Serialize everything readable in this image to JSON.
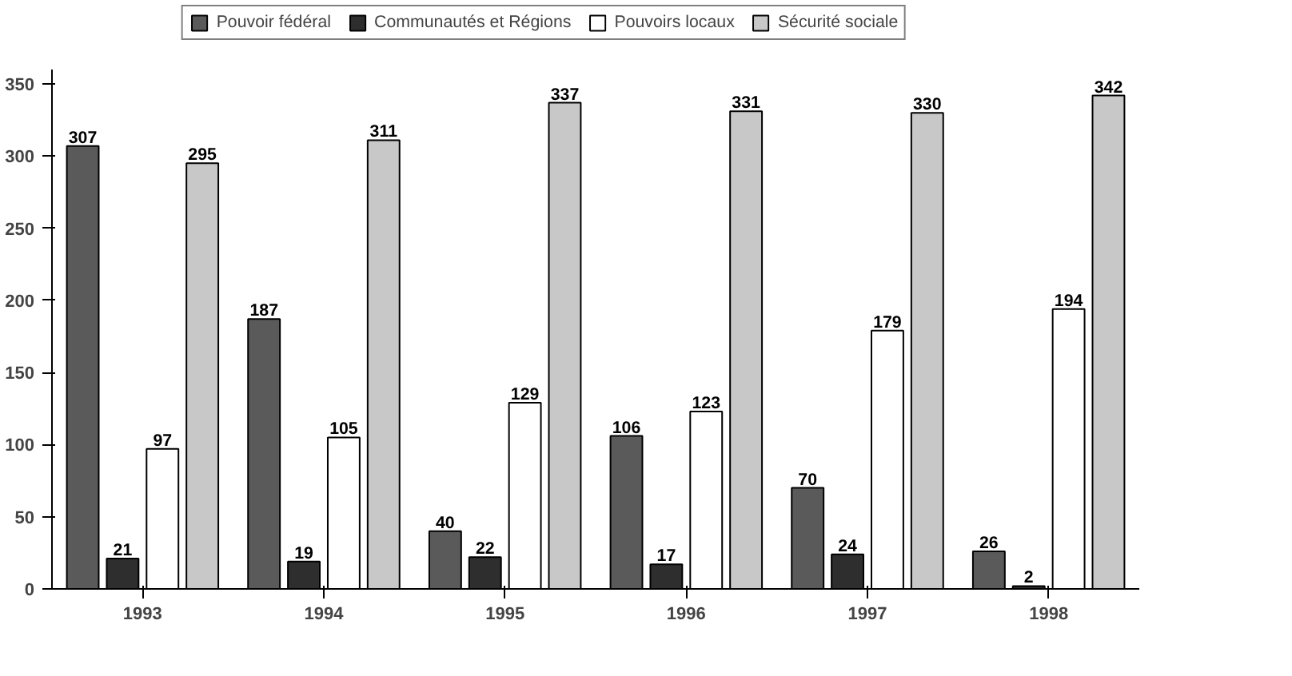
{
  "chart_data": {
    "type": "bar",
    "categories": [
      "1993",
      "1994",
      "1995",
      "1996",
      "1997",
      "1998"
    ],
    "series": [
      {
        "name": "Pouvoir fédéral",
        "color": "#5a5a5a",
        "values": [
          307,
          187,
          40,
          106,
          70,
          26
        ]
      },
      {
        "name": "Communautés et Régions",
        "color": "#2e2e2e",
        "values": [
          21,
          19,
          22,
          17,
          24,
          2
        ]
      },
      {
        "name": "Pouvoirs locaux",
        "color": "#ffffff",
        "values": [
          97,
          105,
          129,
          123,
          179,
          194
        ]
      },
      {
        "name": "Sécurité sociale",
        "color": "#c8c8c8",
        "values": [
          295,
          311,
          337,
          331,
          330,
          342
        ]
      }
    ],
    "ylim": [
      0,
      360
    ],
    "yticks": [
      0,
      50,
      100,
      150,
      200,
      250,
      300,
      350
    ],
    "data_labels": true,
    "grid": false,
    "legend": "top"
  }
}
